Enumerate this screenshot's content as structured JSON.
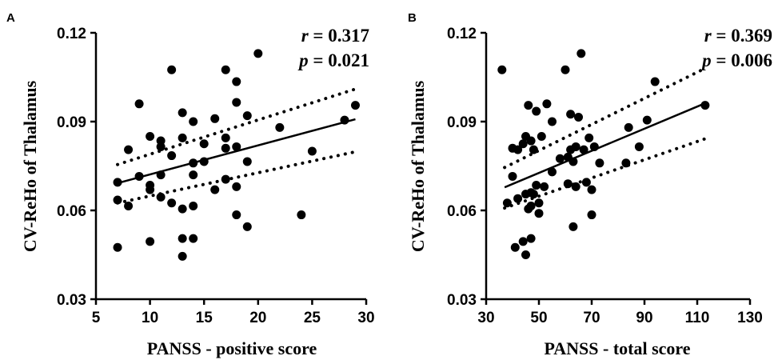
{
  "chart_data": [
    {
      "type": "scatter",
      "panel_label": "A",
      "xlabel": "PANSS - positive score",
      "ylabel": "CV-ReHo of Thalamus",
      "xlim": [
        5,
        30
      ],
      "ylim": [
        0.03,
        0.12
      ],
      "xticks": [
        5,
        10,
        15,
        20,
        25,
        30
      ],
      "yticks": [
        0.03,
        0.06,
        0.09,
        0.12
      ],
      "xtick_labels": [
        "5",
        "10",
        "15",
        "20",
        "25",
        "30"
      ],
      "ytick_labels": [
        "0.03",
        "0.06",
        "0.09",
        "0.12"
      ],
      "stats": {
        "r_symbol": "r",
        "r_value": "0.317",
        "p_symbol": "p",
        "p_value": "0.021"
      },
      "fit_line": {
        "x": [
          7,
          29
        ],
        "y": [
          0.0692,
          0.0908
        ]
      },
      "ci_upper": {
        "x": [
          7,
          29
        ],
        "y": [
          0.0755,
          0.101
        ]
      },
      "ci_lower": {
        "x": [
          7,
          29
        ],
        "y": [
          0.0625,
          0.0798
        ]
      },
      "points": {
        "x": [
          7,
          7,
          7,
          8,
          8,
          9,
          9,
          10,
          10,
          10,
          10,
          11,
          11,
          11,
          11,
          12,
          12,
          12,
          13,
          13,
          13,
          13,
          13,
          14,
          14,
          14,
          14,
          14,
          15,
          15,
          16,
          16,
          17,
          17,
          17,
          17,
          18,
          18,
          18,
          18,
          18,
          19,
          19,
          19,
          20,
          22,
          24,
          25,
          28,
          29
        ],
        "y": [
          0.0475,
          0.0635,
          0.0695,
          0.0615,
          0.0805,
          0.0715,
          0.096,
          0.0495,
          0.067,
          0.0685,
          0.085,
          0.0645,
          0.072,
          0.0815,
          0.0835,
          0.0625,
          0.0785,
          0.1075,
          0.0445,
          0.0505,
          0.0605,
          0.0845,
          0.093,
          0.0505,
          0.0615,
          0.072,
          0.076,
          0.09,
          0.0765,
          0.0825,
          0.067,
          0.091,
          0.0705,
          0.081,
          0.0845,
          0.1075,
          0.0585,
          0.068,
          0.0815,
          0.0965,
          0.1035,
          0.0545,
          0.0765,
          0.092,
          0.113,
          0.088,
          0.0585,
          0.08,
          0.0905,
          0.0955
        ]
      }
    },
    {
      "type": "scatter",
      "panel_label": "B",
      "xlabel": "PANSS - total score",
      "ylabel": "CV-ReHo of Thalamus",
      "xlim": [
        30,
        130
      ],
      "ylim": [
        0.03,
        0.12
      ],
      "xticks": [
        30,
        50,
        70,
        90,
        110,
        130
      ],
      "yticks": [
        0.03,
        0.06,
        0.09,
        0.12
      ],
      "xtick_labels": [
        "30",
        "50",
        "70",
        "90",
        "110",
        "130"
      ],
      "ytick_labels": [
        "0.03",
        "0.06",
        "0.09",
        "0.12"
      ],
      "stats": {
        "r_symbol": "r",
        "r_value": "0.369",
        "p_symbol": "p",
        "p_value": "0.006"
      },
      "fit_line": {
        "x": [
          37,
          113
        ],
        "y": [
          0.0678,
          0.0962
        ]
      },
      "ci_upper": {
        "x": [
          37,
          113
        ],
        "y": [
          0.0745,
          0.108
        ]
      },
      "ci_lower": {
        "x": [
          37,
          113
        ],
        "y": [
          0.0608,
          0.0842
        ]
      },
      "points": {
        "x": [
          36,
          38,
          40,
          40,
          41,
          42,
          42,
          44,
          44,
          45,
          45,
          45,
          46,
          46,
          47,
          47,
          47,
          47,
          48,
          48,
          49,
          49,
          50,
          50,
          51,
          52,
          53,
          55,
          55,
          58,
          60,
          61,
          61,
          62,
          62,
          63,
          63,
          64,
          64,
          65,
          66,
          67,
          68,
          69,
          70,
          70,
          71,
          73,
          83,
          84,
          88,
          91,
          94,
          113
        ],
        "y": [
          0.1075,
          0.0625,
          0.0715,
          0.081,
          0.0475,
          0.064,
          0.0805,
          0.0495,
          0.0825,
          0.045,
          0.0655,
          0.085,
          0.0605,
          0.0955,
          0.0505,
          0.0615,
          0.066,
          0.0835,
          0.0655,
          0.0805,
          0.0685,
          0.0935,
          0.059,
          0.0625,
          0.085,
          0.068,
          0.096,
          0.073,
          0.09,
          0.0775,
          0.1075,
          0.069,
          0.078,
          0.0805,
          0.0925,
          0.0545,
          0.0765,
          0.068,
          0.0815,
          0.0915,
          0.113,
          0.0805,
          0.0695,
          0.0845,
          0.0585,
          0.067,
          0.0815,
          0.076,
          0.076,
          0.088,
          0.0815,
          0.0905,
          0.1035,
          0.0955
        ]
      }
    }
  ]
}
